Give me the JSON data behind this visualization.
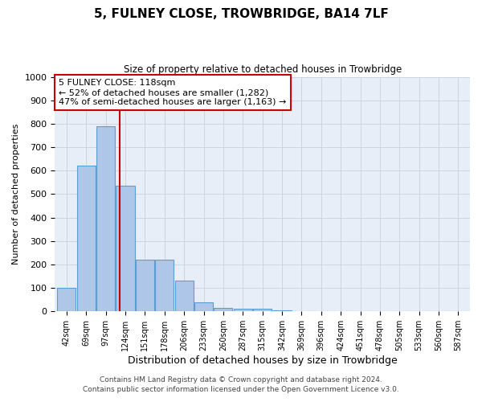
{
  "title": "5, FULNEY CLOSE, TROWBRIDGE, BA14 7LF",
  "subtitle": "Size of property relative to detached houses in Trowbridge",
  "xlabel": "Distribution of detached houses by size in Trowbridge",
  "ylabel": "Number of detached properties",
  "footnote1": "Contains HM Land Registry data © Crown copyright and database right 2024.",
  "footnote2": "Contains public sector information licensed under the Open Government Licence v3.0.",
  "bin_labels": [
    "42sqm",
    "69sqm",
    "97sqm",
    "124sqm",
    "151sqm",
    "178sqm",
    "206sqm",
    "233sqm",
    "260sqm",
    "287sqm",
    "315sqm",
    "342sqm",
    "369sqm",
    "396sqm",
    "424sqm",
    "451sqm",
    "478sqm",
    "505sqm",
    "533sqm",
    "560sqm",
    "587sqm"
  ],
  "bar_heights": [
    100,
    620,
    790,
    535,
    220,
    220,
    130,
    40,
    15,
    10,
    10,
    5,
    2,
    2,
    2,
    2,
    2,
    2,
    2,
    2,
    0
  ],
  "bar_color": "#aec6e8",
  "bar_edgecolor": "#5a9fd4",
  "ylim": [
    0,
    1000
  ],
  "yticks": [
    0,
    100,
    200,
    300,
    400,
    500,
    600,
    700,
    800,
    900,
    1000
  ],
  "red_line_x": 2.72,
  "annotation_line1": "5 FULNEY CLOSE: 118sqm",
  "annotation_line2": "← 52% of detached houses are smaller (1,282)",
  "annotation_line3": "47% of semi-detached houses are larger (1,163) →",
  "annotation_box_color": "#ffffff",
  "annotation_border_color": "#cc0000",
  "background_color": "#ffffff",
  "plot_bg_color": "#e8eef8",
  "grid_color": "#c8d0dc"
}
